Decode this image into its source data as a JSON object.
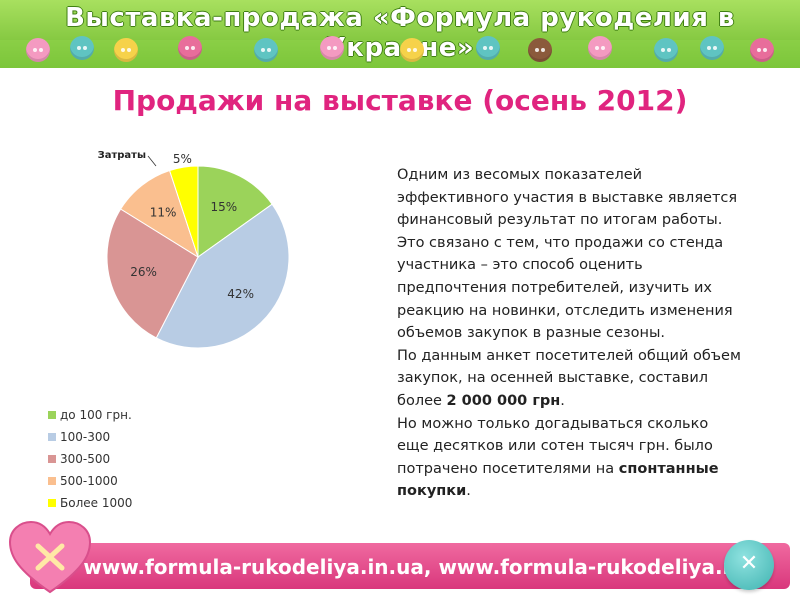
{
  "banner": {
    "title": "Выставка-продажа «Формула рукоделия в Украине»"
  },
  "page_title": "Продажи на выставке (осень 2012)",
  "colors": {
    "title_pink": "#e0247f",
    "banner_green": "#86c942",
    "footer_pink": "#e0478a"
  },
  "chart_data": {
    "type": "pie",
    "title": "",
    "slices": [
      {
        "label": "до 100 грн.",
        "value": 15,
        "display": "15%",
        "color": "#9bd35a"
      },
      {
        "label": "100-300",
        "value": 42,
        "display": "42%",
        "color": "#b8cce4"
      },
      {
        "label": "300-500",
        "value": 26,
        "display": "26%",
        "color": "#d99594"
      },
      {
        "label": "500-1000",
        "value": 11,
        "display": "11%",
        "color": "#fabf8f"
      },
      {
        "label": "Более 1000",
        "value": 5,
        "display": "5%",
        "color": "#ffff00"
      }
    ],
    "annotation": "Затраты",
    "legend_position": "bottom-left"
  },
  "body": {
    "p1": "Одним из весомых показателей эффективного участия в выставке является финансовый результат по итогам работы.",
    "p2": "Это связано с тем, что продажи со стенда участника – это способ оценить предпочтения потребителей, изучить их реакцию на новинки, отследить изменения объемов закупок в разные сезоны.",
    "p3_start": "По данным анкет посетителей общий объем закупок, на осенней выставке, составил  более ",
    "p3_bold": "2 000 000 грн",
    "p3_end": ".",
    "p4_start": "Но можно только догадываться сколько еще десятков или сотен тысяч грн. было потрачено посетителями на ",
    "p4_bold": "спонтанные покупки",
    "p4_end": "."
  },
  "footer": {
    "url_text": "www.formula-rukodeliya.in.ua, www.formula-rukodeliya.ru"
  }
}
